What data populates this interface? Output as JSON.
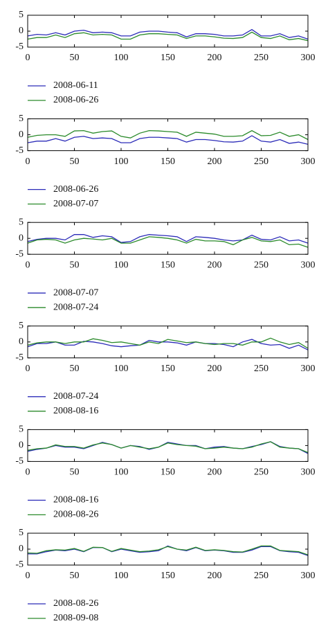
{
  "chart_data": [
    {
      "type": "line",
      "x": [
        0,
        10,
        20,
        30,
        40,
        50,
        60,
        70,
        80,
        90,
        100,
        110,
        120,
        130,
        140,
        150,
        160,
        170,
        180,
        190,
        200,
        210,
        220,
        230,
        240,
        250,
        260,
        270,
        280,
        290,
        300
      ],
      "xlim": [
        0,
        300
      ],
      "ylim": [
        -5,
        5
      ],
      "xticks": [
        0,
        50,
        100,
        150,
        200,
        250,
        300
      ],
      "yticks": [
        -5,
        0,
        5
      ],
      "series": [
        {
          "name": "2008-06-11",
          "color": "#2b2bb8",
          "values": [
            -1.5,
            -1,
            -1.2,
            -0.5,
            -1.2,
            0,
            0.3,
            -0.5,
            -0.3,
            -0.5,
            -1.5,
            -1.5,
            -0.3,
            0,
            0,
            -0.3,
            -0.5,
            -1.8,
            -0.8,
            -0.8,
            -1,
            -1.5,
            -1.5,
            -1.2,
            0.5,
            -1.5,
            -1.5,
            -0.8,
            -2,
            -1.5,
            -2.5
          ]
        },
        {
          "name": "2008-06-26",
          "color": "#2a8a2a",
          "values": [
            -2.5,
            -2,
            -2,
            -1.2,
            -2,
            -0.8,
            -0.5,
            -1.2,
            -1,
            -1.2,
            -2.5,
            -2.5,
            -1.2,
            -0.8,
            -0.8,
            -1,
            -1.2,
            -2.3,
            -1.5,
            -1.5,
            -1.8,
            -2.2,
            -2.3,
            -2,
            -0.3,
            -2,
            -2.3,
            -1.5,
            -2.7,
            -2.3,
            -3
          ]
        }
      ]
    },
    {
      "type": "line",
      "x": [
        0,
        10,
        20,
        30,
        40,
        50,
        60,
        70,
        80,
        90,
        100,
        110,
        120,
        130,
        140,
        150,
        160,
        170,
        180,
        190,
        200,
        210,
        220,
        230,
        240,
        250,
        260,
        270,
        280,
        290,
        300
      ],
      "xlim": [
        0,
        300
      ],
      "ylim": [
        -5,
        5
      ],
      "xticks": [
        0,
        50,
        100,
        150,
        200,
        250,
        300
      ],
      "yticks": [
        -5,
        0,
        5
      ],
      "series": [
        {
          "name": "2008-06-26",
          "color": "#2b2bb8",
          "values": [
            -2.5,
            -2,
            -2,
            -1.2,
            -2,
            -0.8,
            -0.5,
            -1.2,
            -1,
            -1.2,
            -2.5,
            -2.5,
            -1.2,
            -0.8,
            -0.8,
            -1,
            -1.2,
            -2.3,
            -1.5,
            -1.5,
            -1.8,
            -2.2,
            -2.3,
            -2,
            -0.3,
            -2,
            -2.3,
            -1.5,
            -2.7,
            -2.3,
            -3
          ]
        },
        {
          "name": "2008-07-07",
          "color": "#2a8a2a",
          "values": [
            -0.8,
            -0.2,
            0,
            0,
            -0.5,
            1.2,
            1.3,
            0.5,
            1,
            1.2,
            -0.5,
            -1,
            0.5,
            1.3,
            1.2,
            1,
            0.8,
            -0.5,
            0.8,
            0.5,
            0.2,
            -0.5,
            -0.5,
            -0.3,
            1.3,
            -0.3,
            -0.2,
            0.8,
            -0.5,
            0,
            -1.5
          ]
        }
      ]
    },
    {
      "type": "line",
      "x": [
        0,
        10,
        20,
        30,
        40,
        50,
        60,
        70,
        80,
        90,
        100,
        110,
        120,
        130,
        140,
        150,
        160,
        170,
        180,
        190,
        200,
        210,
        220,
        230,
        240,
        250,
        260,
        270,
        280,
        290,
        300
      ],
      "xlim": [
        0,
        300
      ],
      "ylim": [
        -5,
        5
      ],
      "xticks": [
        0,
        50,
        100,
        150,
        200,
        250,
        300
      ],
      "yticks": [
        -5,
        0,
        5
      ],
      "series": [
        {
          "name": "2008-07-07",
          "color": "#2b2bb8",
          "values": [
            -1,
            -0.3,
            0,
            0,
            -0.5,
            1.2,
            1.2,
            0.3,
            0.8,
            0.5,
            -1.3,
            -1,
            0.5,
            1.2,
            1,
            0.8,
            0.5,
            -1,
            0.5,
            0.3,
            0,
            -0.5,
            -0.8,
            -0.5,
            1,
            -0.3,
            -0.5,
            0.5,
            -0.8,
            -0.5,
            -1.5
          ]
        },
        {
          "name": "2008-07-24",
          "color": "#2a8a2a",
          "values": [
            -1.5,
            -0.5,
            -0.3,
            -0.5,
            -1.5,
            -0.5,
            0,
            -0.2,
            -0.5,
            0,
            -1.5,
            -1.5,
            -0.5,
            0.5,
            0.3,
            0,
            -0.5,
            -1.5,
            -0.3,
            -0.8,
            -0.8,
            -1,
            -2,
            -0.5,
            0.3,
            -0.8,
            -1,
            -0.5,
            -2,
            -1.8,
            -2.8
          ]
        }
      ]
    },
    {
      "type": "line",
      "x": [
        0,
        10,
        20,
        30,
        40,
        50,
        60,
        70,
        80,
        90,
        100,
        110,
        120,
        130,
        140,
        150,
        160,
        170,
        180,
        190,
        200,
        210,
        220,
        230,
        240,
        250,
        260,
        270,
        280,
        290,
        300
      ],
      "xlim": [
        0,
        300
      ],
      "ylim": [
        -5,
        5
      ],
      "xticks": [
        0,
        50,
        100,
        150,
        200,
        250,
        300
      ],
      "yticks": [
        -5,
        0,
        5
      ],
      "series": [
        {
          "name": "2008-07-24",
          "color": "#2b2bb8",
          "values": [
            -1.5,
            -0.5,
            -0.5,
            0,
            -1,
            -1,
            0.2,
            0,
            -0.5,
            -1.2,
            -1.5,
            -1.2,
            -1,
            0.5,
            0,
            0,
            -0.3,
            -1,
            0,
            -0.5,
            -0.5,
            -0.8,
            -1.5,
            0,
            0.8,
            -0.5,
            -1,
            -0.8,
            -2,
            -1,
            -2.5
          ]
        },
        {
          "name": "2008-08-16",
          "color": "#2a8a2a",
          "values": [
            -1,
            -0.3,
            0,
            0,
            -0.5,
            0,
            0,
            1,
            0.5,
            -0.2,
            0,
            -0.5,
            -1,
            0,
            -0.5,
            0.8,
            0.3,
            -0.2,
            0,
            -0.5,
            -0.8,
            -0.5,
            -0.5,
            -1,
            0,
            0,
            1.2,
            0,
            -0.8,
            -0.2,
            -2
          ]
        }
      ]
    },
    {
      "type": "line",
      "x": [
        0,
        10,
        20,
        30,
        40,
        50,
        60,
        70,
        80,
        90,
        100,
        110,
        120,
        130,
        140,
        150,
        160,
        170,
        180,
        190,
        200,
        210,
        220,
        230,
        240,
        250,
        260,
        270,
        280,
        290,
        300
      ],
      "xlim": [
        0,
        300
      ],
      "ylim": [
        -5,
        5
      ],
      "xticks": [
        0,
        50,
        100,
        150,
        200,
        250,
        300
      ],
      "yticks": [
        -5,
        0,
        5
      ],
      "series": [
        {
          "name": "2008-08-16",
          "color": "#2b2bb8",
          "values": [
            -1.8,
            -1.2,
            -0.8,
            0,
            -0.5,
            -0.5,
            -1,
            0,
            1,
            0.3,
            -0.8,
            0,
            -0.3,
            -1.2,
            -0.5,
            1,
            0.5,
            0,
            0,
            -1,
            -0.5,
            -0.3,
            -0.8,
            -1,
            -0.3,
            0.3,
            1.2,
            -0.3,
            -0.8,
            -1,
            -2.5
          ]
        },
        {
          "name": "2008-08-26",
          "color": "#2a8a2a",
          "values": [
            -1.5,
            -1,
            -0.8,
            0.2,
            -0.3,
            -0.3,
            -0.8,
            0.2,
            0.8,
            0.3,
            -0.8,
            0,
            -0.5,
            -1,
            -0.5,
            0.8,
            0.3,
            0,
            -0.2,
            -1,
            -0.8,
            -0.5,
            -0.8,
            -1,
            -0.5,
            0.5,
            1.2,
            -0.5,
            -0.8,
            -1,
            -2.2
          ]
        }
      ]
    },
    {
      "type": "line",
      "x": [
        0,
        10,
        20,
        30,
        40,
        50,
        60,
        70,
        80,
        90,
        100,
        110,
        120,
        130,
        140,
        150,
        160,
        170,
        180,
        190,
        200,
        210,
        220,
        230,
        240,
        250,
        260,
        270,
        280,
        290,
        300
      ],
      "xlim": [
        0,
        300
      ],
      "ylim": [
        -5,
        5
      ],
      "xticks": [
        0,
        50,
        100,
        150,
        200,
        250,
        300
      ],
      "yticks": [
        -5,
        0,
        5
      ],
      "series": [
        {
          "name": "2008-08-26",
          "color": "#2b2bb8",
          "values": [
            -1.5,
            -1.5,
            -0.8,
            -0.3,
            -0.5,
            0,
            -0.8,
            0.5,
            0.5,
            -0.8,
            0,
            -0.5,
            -1,
            -0.8,
            -0.5,
            1,
            0,
            -0.5,
            0.5,
            -0.5,
            -0.3,
            -0.5,
            -1,
            -1,
            -0.3,
            0.8,
            0.8,
            -0.5,
            -0.8,
            -1,
            -2
          ]
        },
        {
          "name": "2008-09-08",
          "color": "#2a8a2a",
          "values": [
            -1.2,
            -1.3,
            -0.5,
            -0.2,
            -0.3,
            0.2,
            -0.7,
            0.6,
            0.5,
            -0.7,
            0.2,
            -0.3,
            -0.8,
            -0.6,
            -0.2,
            0.8,
            0,
            -0.3,
            0.6,
            -0.4,
            -0.2,
            -0.4,
            -0.8,
            -0.9,
            0,
            1,
            1,
            -0.4,
            -0.6,
            -0.8,
            -1.8
          ]
        }
      ]
    }
  ]
}
